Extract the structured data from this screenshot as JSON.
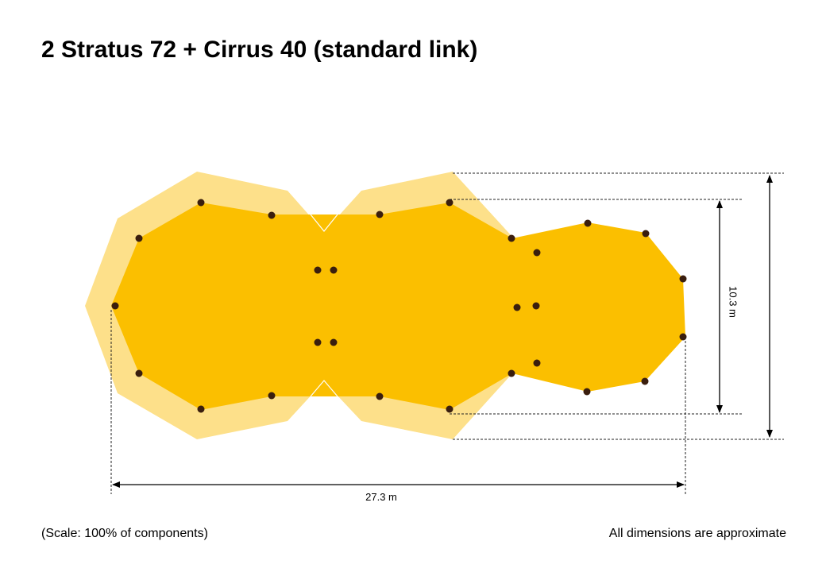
{
  "title": "2 Stratus 72 + Cirrus 40 (standard link)",
  "dimensions": {
    "height": "10.3 m",
    "width": "27.3 m"
  },
  "footer": {
    "scale": "(Scale: 100% of components)",
    "note": "All dimensions are approximate"
  }
}
